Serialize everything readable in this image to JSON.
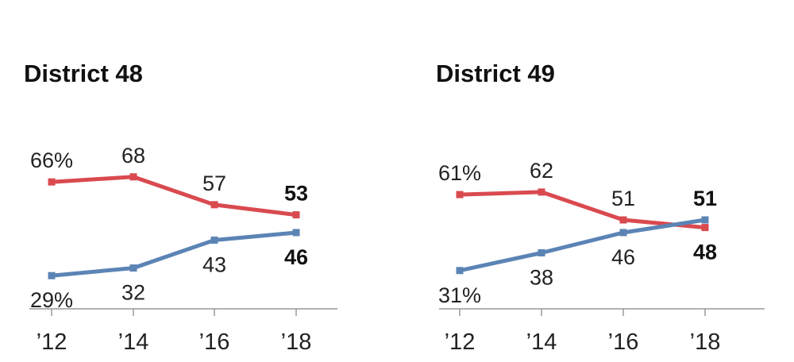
{
  "chart_data": [
    {
      "type": "line",
      "title": "District 48",
      "categories": [
        "’12",
        "’14",
        "’16",
        "’18"
      ],
      "series": [
        {
          "name": "red",
          "color": "#d94a4f",
          "values": [
            66,
            68,
            57,
            53
          ],
          "labels": [
            "66%",
            "68",
            "57",
            "53"
          ]
        },
        {
          "name": "blue",
          "color": "#5b84b5",
          "values": [
            29,
            32,
            43,
            46
          ],
          "labels": [
            "29%",
            "32",
            "43",
            "46"
          ]
        }
      ],
      "ylim": [
        10,
        80
      ],
      "xlabel": "",
      "ylabel": ""
    },
    {
      "type": "line",
      "title": "District 49",
      "categories": [
        "’12",
        "’14",
        "’16",
        "’18"
      ],
      "series": [
        {
          "name": "red",
          "color": "#d94a4f",
          "values": [
            61,
            62,
            51,
            48
          ],
          "labels": [
            "61%",
            "62",
            "51",
            "48"
          ]
        },
        {
          "name": "blue",
          "color": "#5b84b5",
          "values": [
            31,
            38,
            46,
            51
          ],
          "labels": [
            "31%",
            "38",
            "46",
            "51"
          ]
        }
      ],
      "ylim": [
        10,
        80
      ],
      "xlabel": "",
      "ylabel": ""
    }
  ]
}
